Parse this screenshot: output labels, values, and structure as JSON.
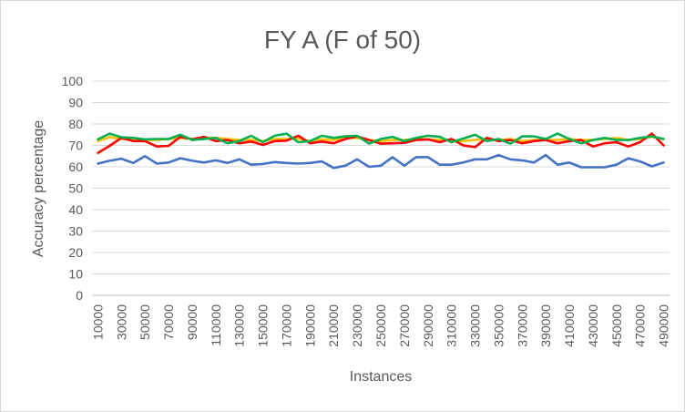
{
  "chart_data": {
    "type": "line",
    "title": "FY A (F of 50)",
    "xlabel": "Instances",
    "ylabel": "Accuracy percentage",
    "ylim": [
      0,
      100
    ],
    "yticks": [
      0,
      10,
      20,
      30,
      40,
      50,
      60,
      70,
      80,
      90,
      100
    ],
    "grid": true,
    "legend": "none",
    "x": [
      10000,
      20000,
      30000,
      40000,
      50000,
      60000,
      70000,
      80000,
      90000,
      100000,
      110000,
      120000,
      130000,
      140000,
      150000,
      160000,
      170000,
      180000,
      190000,
      200000,
      210000,
      220000,
      230000,
      240000,
      250000,
      260000,
      270000,
      280000,
      290000,
      300000,
      310000,
      320000,
      330000,
      340000,
      350000,
      360000,
      370000,
      380000,
      390000,
      400000,
      410000,
      420000,
      430000,
      440000,
      450000,
      460000,
      470000,
      480000,
      490000
    ],
    "x_tick_labels": [
      "10000",
      "30000",
      "50000",
      "70000",
      "90000",
      "110000",
      "130000",
      "150000",
      "170000",
      "190000",
      "210000",
      "230000",
      "250000",
      "270000",
      "290000",
      "310000",
      "330000",
      "350000",
      "370000",
      "390000",
      "410000",
      "430000",
      "450000",
      "470000",
      "490000"
    ],
    "series": [
      {
        "color": "#4472C4",
        "values": [
          61.5,
          62.8,
          63.8,
          61.8,
          65,
          61.5,
          62,
          64,
          62.8,
          62,
          63,
          61.8,
          63.5,
          61,
          61.3,
          62.2,
          61.8,
          61.5,
          61.8,
          62.5,
          59.5,
          60.5,
          63.5,
          60,
          60.5,
          64.5,
          60.5,
          64.5,
          64.5,
          61,
          61,
          62,
          63.5,
          63.5,
          65.5,
          63.5,
          63,
          62,
          65.5,
          61,
          62,
          59.8,
          59.8,
          59.8,
          61,
          64,
          62.5,
          60.2,
          62
        ]
      },
      {
        "color": "#FFC000",
        "values": [
          72,
          73.8,
          73,
          72.5,
          72.5,
          72.5,
          73,
          73.5,
          73,
          73.5,
          73.5,
          73,
          72.5,
          72.5,
          72,
          73,
          73,
          73.2,
          72,
          72.8,
          72.5,
          73.5,
          73.5,
          72.5,
          72,
          72.5,
          72.5,
          73,
          72.8,
          72.5,
          72.5,
          72,
          72.5,
          73,
          72.5,
          73,
          72,
          72.5,
          72.5,
          72.5,
          73,
          72.5,
          72.5,
          73,
          73.5,
          72.5,
          73,
          74,
          73
        ]
      },
      {
        "color": "#FF0000",
        "values": [
          66.5,
          69.8,
          73.5,
          72,
          72,
          69.5,
          69.8,
          74,
          72.8,
          74,
          72,
          72.5,
          71,
          71.8,
          70.2,
          72,
          72.2,
          74.5,
          71,
          71.8,
          71,
          73,
          74.2,
          72.5,
          70.8,
          71,
          71.2,
          72.5,
          72.8,
          71.5,
          73,
          70,
          69.2,
          73.5,
          72,
          72.5,
          71,
          72,
          72.5,
          71,
          72,
          72.5,
          69.5,
          71,
          71.5,
          69.5,
          71.5,
          75.5,
          70
        ]
      },
      {
        "color": "#00B050",
        "values": [
          72.8,
          75.5,
          73.8,
          73.5,
          72.8,
          73,
          73,
          75,
          72.5,
          73,
          73.5,
          71,
          72,
          74.5,
          71.5,
          74.5,
          75.5,
          71.5,
          72,
          74.5,
          73.5,
          74.2,
          74.5,
          70.8,
          73,
          74,
          72,
          73.5,
          74.5,
          74,
          71.5,
          73.2,
          75,
          72,
          73,
          70.8,
          74.2,
          74.2,
          73,
          75.5,
          73,
          71,
          72.5,
          73.5,
          72.5,
          72.5,
          73.5,
          74.2,
          73
        ]
      }
    ]
  }
}
